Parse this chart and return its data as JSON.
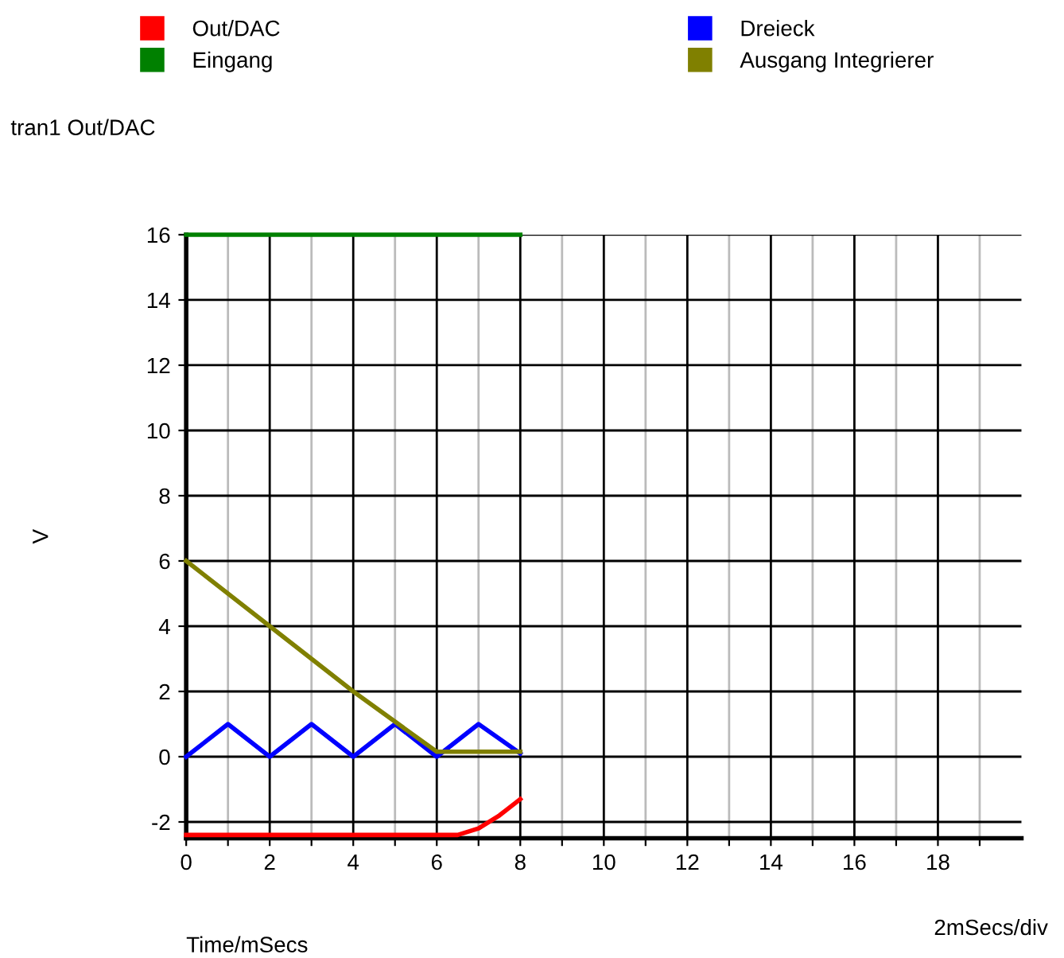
{
  "chart_data": {
    "type": "line",
    "xlabel": "Time/mSecs",
    "ylabel": "V",
    "annotations": [
      "tran1 Out/DAC",
      "2mSecs/div"
    ],
    "xlim": [
      0,
      20
    ],
    "ylim": [
      -2.5,
      16
    ],
    "xticks": [
      0,
      {
        "value": 1,
        "label": null
      },
      2,
      {
        "value": 3,
        "label": null
      },
      4,
      {
        "value": 5,
        "label": null
      },
      6,
      {
        "value": 7,
        "label": null
      },
      8,
      {
        "value": 9,
        "label": null
      },
      10,
      {
        "value": 11,
        "label": null
      },
      12,
      {
        "value": 13,
        "label": null
      },
      14,
      {
        "value": 15,
        "label": null
      },
      16,
      {
        "value": 17,
        "label": null
      },
      18,
      {
        "value": 19,
        "label": null
      }
    ],
    "yticks": [
      -2,
      0,
      2,
      4,
      6,
      8,
      10,
      12,
      14,
      16
    ],
    "grid": true,
    "legend": "top",
    "marker": "none",
    "line_style": "solid",
    "series": [
      {
        "name": "Out/DAC",
        "color": "#ff0000",
        "x": [
          0,
          6.5,
          7,
          7.5,
          8
        ],
        "values": [
          -2.4,
          -2.4,
          -2.2,
          -1.8,
          -1.3
        ]
      },
      {
        "name": "Eingang",
        "color": "#008000",
        "x": [
          0,
          8
        ],
        "values": [
          16,
          16
        ]
      },
      {
        "name": "Dreieck",
        "color": "#0000ff",
        "x": [
          0,
          1,
          2,
          3,
          4,
          5,
          6,
          7,
          8
        ],
        "values": [
          0,
          1,
          0,
          1,
          0,
          1,
          0,
          1,
          0.1
        ]
      },
      {
        "name": "Ausgang Integrierer",
        "color": "#808000",
        "x": [
          0,
          2,
          4,
          6,
          8
        ],
        "values": [
          6,
          4,
          2,
          0.15,
          0.15
        ]
      }
    ]
  }
}
